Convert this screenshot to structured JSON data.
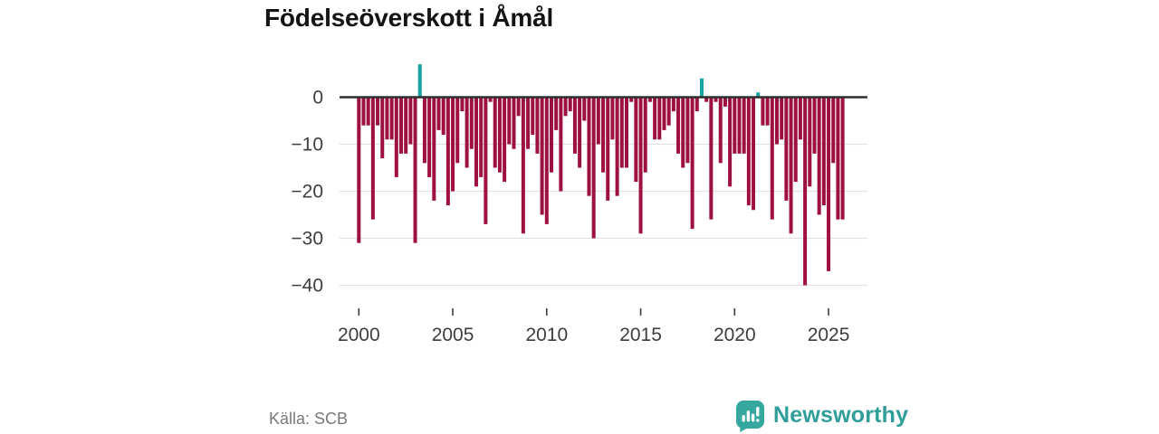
{
  "title": "Födelseöverskott i Åmål",
  "footer": {
    "source": "Källa: SCB",
    "logo_text": "Newsworthy"
  },
  "colors": {
    "bar_negative": "#9e1040",
    "bar_positive": "#16a2a0",
    "zero_line": "#2e2e2e",
    "grid_line": "#e1e1e1",
    "tick_label": "#3d3d3d",
    "logo_teal": "#35a79f",
    "logo_text_teal": "#2f9e98"
  },
  "chart_data": {
    "type": "bar",
    "title": "Födelseöverskott i Åmål",
    "xlabel": "",
    "ylabel": "",
    "grid": "horizontal",
    "legend": "none",
    "ylim": [
      -43,
      8
    ],
    "ytick_values": [
      0,
      -10,
      -20,
      -30,
      -40
    ],
    "ytick_labels": [
      "0",
      "−10",
      "−20",
      "−30",
      "−40"
    ],
    "xtick_years": [
      2000,
      2005,
      2010,
      2015,
      2020,
      2025
    ],
    "xtick_labels": [
      "2000",
      "2005",
      "2010",
      "2015",
      "2020",
      "2025"
    ],
    "categories": [
      "2000 Q1",
      "2000 Q2",
      "2000 Q3",
      "2000 Q4",
      "2001 Q1",
      "2001 Q2",
      "2001 Q3",
      "2001 Q4",
      "2002 Q1",
      "2002 Q2",
      "2002 Q3",
      "2002 Q4",
      "2003 Q1",
      "2003 Q2",
      "2003 Q3",
      "2003 Q4",
      "2004 Q1",
      "2004 Q2",
      "2004 Q3",
      "2004 Q4",
      "2005 Q1",
      "2005 Q2",
      "2005 Q3",
      "2005 Q4",
      "2006 Q1",
      "2006 Q2",
      "2006 Q3",
      "2006 Q4",
      "2007 Q1",
      "2007 Q2",
      "2007 Q3",
      "2007 Q4",
      "2008 Q1",
      "2008 Q2",
      "2008 Q3",
      "2008 Q4",
      "2009 Q1",
      "2009 Q2",
      "2009 Q3",
      "2009 Q4",
      "2010 Q1",
      "2010 Q2",
      "2010 Q3",
      "2010 Q4",
      "2011 Q1",
      "2011 Q2",
      "2011 Q3",
      "2011 Q4",
      "2012 Q1",
      "2012 Q2",
      "2012 Q3",
      "2012 Q4",
      "2013 Q1",
      "2013 Q2",
      "2013 Q3",
      "2013 Q4",
      "2014 Q1",
      "2014 Q2",
      "2014 Q3",
      "2014 Q4",
      "2015 Q1",
      "2015 Q2",
      "2015 Q3",
      "2015 Q4",
      "2016 Q1",
      "2016 Q2",
      "2016 Q3",
      "2016 Q4",
      "2017 Q1",
      "2017 Q2",
      "2017 Q3",
      "2017 Q4",
      "2018 Q1",
      "2018 Q2",
      "2018 Q3",
      "2018 Q4",
      "2019 Q1",
      "2019 Q2",
      "2019 Q3",
      "2019 Q4",
      "2020 Q1",
      "2020 Q2",
      "2020 Q3",
      "2020 Q4",
      "2021 Q1",
      "2021 Q2",
      "2021 Q3",
      "2021 Q4",
      "2022 Q1",
      "2022 Q2",
      "2022 Q3",
      "2022 Q4",
      "2023 Q1",
      "2023 Q2",
      "2023 Q3",
      "2023 Q4",
      "2024 Q1",
      "2024 Q2",
      "2024 Q3",
      "2024 Q4",
      "2025 Q1",
      "2025 Q2",
      "2025 Q3",
      "2025 Q4"
    ],
    "values": [
      -31,
      -6,
      -6,
      -26,
      -6,
      -13,
      -9,
      -9,
      -17,
      -12,
      -12,
      -10,
      -31,
      7,
      -14,
      -17,
      -22,
      -7,
      -8,
      -23,
      -20,
      -14,
      -3,
      -15,
      -11,
      -19,
      -17,
      -27,
      -1,
      -15,
      -16,
      -18,
      -10,
      -11,
      -4,
      -29,
      -11,
      -8,
      -12,
      -25,
      -27,
      -16,
      -7,
      -20,
      -4,
      -3,
      -12,
      -15,
      -5,
      -21,
      -30,
      -10,
      -16,
      -22,
      -9,
      -21,
      -15,
      -15,
      -1,
      -18,
      -29,
      -16,
      -1,
      -9,
      -9,
      -7,
      -6,
      -3,
      -12,
      -15,
      -14,
      -28,
      -3,
      4,
      -1,
      -26,
      -1,
      -14,
      -2,
      -19,
      -12,
      -12,
      -12,
      -23,
      -24,
      1,
      -6,
      -6,
      -26,
      -10,
      -9,
      -22,
      -29,
      -18,
      -9,
      -40,
      -19,
      -12,
      -25,
      -23,
      -37,
      -14,
      -26,
      -26
    ]
  }
}
